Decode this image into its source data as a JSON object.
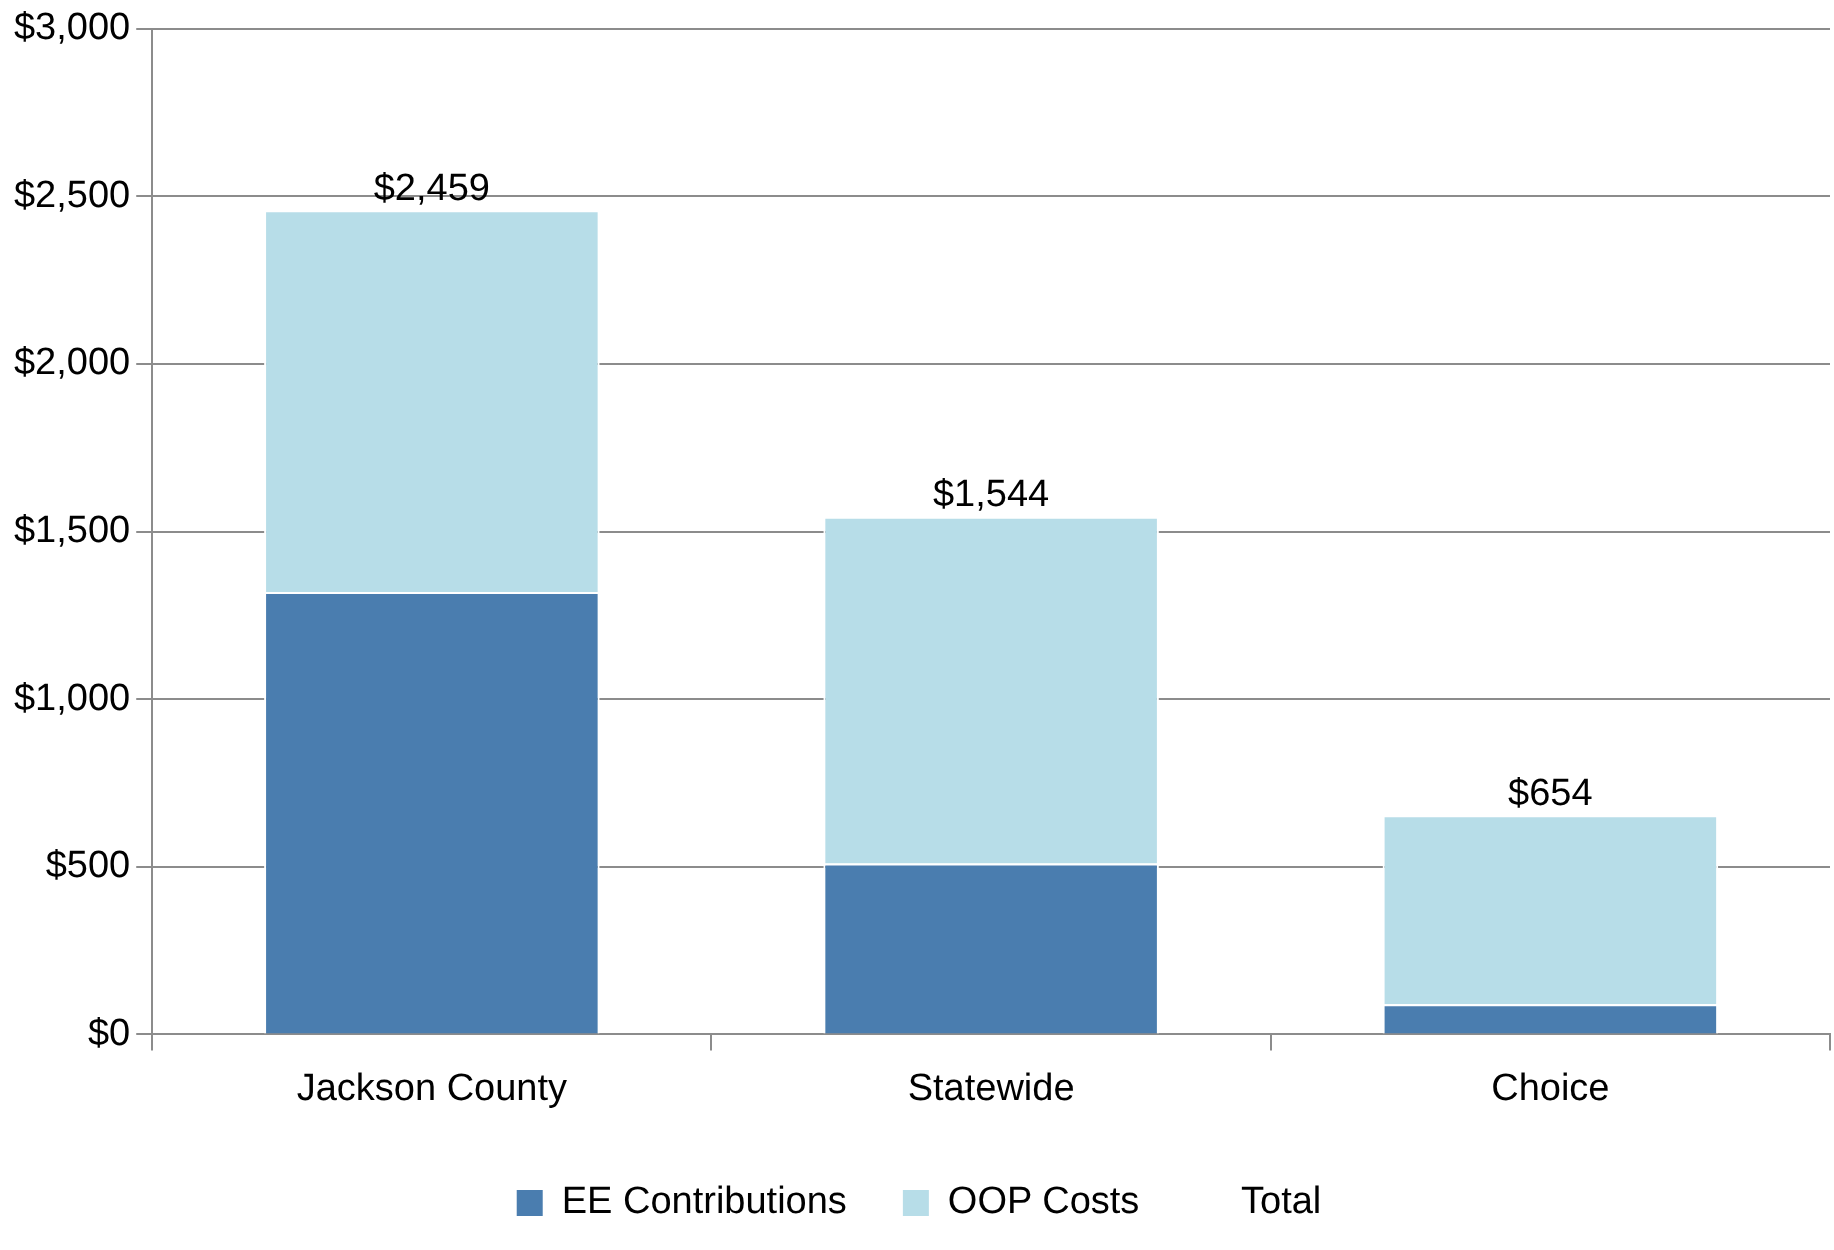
{
  "chart_data": {
    "type": "bar",
    "stacked": true,
    "categories": [
      "Jackson County",
      "Statewide",
      "Choice"
    ],
    "series": [
      {
        "name": "EE Contributions",
        "color": "#4a7daf",
        "values": [
          1320,
          510,
          90
        ]
      },
      {
        "name": "OOP Costs",
        "color": "#b7dde8",
        "values": [
          1139,
          1034,
          564
        ]
      }
    ],
    "totals": [
      "$2,459",
      "$1,544",
      "$654"
    ],
    "annotations": [
      "Total"
    ],
    "ylim": [
      0,
      3000
    ],
    "yticks": [
      {
        "value": 0,
        "label": "$0"
      },
      {
        "value": 500,
        "label": "$500"
      },
      {
        "value": 1000,
        "label": "$1,000"
      },
      {
        "value": 1500,
        "label": "$1,500"
      },
      {
        "value": 2000,
        "label": "$2,000"
      },
      {
        "value": 2500,
        "label": "$2,500"
      },
      {
        "value": 3000,
        "label": "$3,000"
      }
    ],
    "grid": "y",
    "legend": "bottom"
  }
}
